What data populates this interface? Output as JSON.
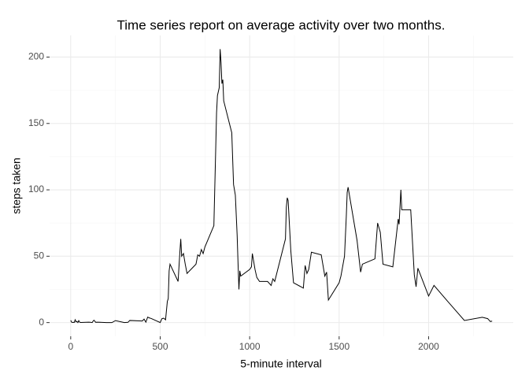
{
  "chart_data": {
    "type": "line",
    "title": "Time series report on average activity over two months.",
    "xlabel": "5-minute interval",
    "ylabel": "steps taken",
    "x": [
      0,
      5,
      10,
      15,
      20,
      25,
      30,
      35,
      40,
      45,
      50,
      55,
      100,
      110,
      120,
      125,
      130,
      140,
      150,
      200,
      230,
      250,
      300,
      320,
      330,
      400,
      410,
      420,
      430,
      440,
      450,
      500,
      510,
      520,
      530,
      540,
      545,
      550,
      555,
      600,
      610,
      615,
      620,
      630,
      640,
      650,
      700,
      710,
      720,
      730,
      740,
      750,
      800,
      810,
      815,
      820,
      830,
      835,
      840,
      845,
      850,
      855,
      900,
      910,
      920,
      930,
      935,
      940,
      945,
      950,
      1000,
      1010,
      1015,
      1030,
      1040,
      1055,
      1100,
      1120,
      1130,
      1140,
      1200,
      1205,
      1210,
      1215,
      1230,
      1245,
      1300,
      1310,
      1320,
      1330,
      1345,
      1400,
      1420,
      1430,
      1440,
      1500,
      1510,
      1530,
      1540,
      1545,
      1550,
      1600,
      1620,
      1630,
      1700,
      1715,
      1730,
      1745,
      1800,
      1830,
      1835,
      1845,
      1850,
      1900,
      1920,
      1930,
      1940,
      2000,
      2030,
      2100,
      2200,
      2300,
      2330,
      2345,
      2355
    ],
    "values": [
      1.7,
      0.3,
      0.1,
      0.2,
      0.1,
      2.1,
      0.5,
      0.9,
      0,
      1.5,
      0.3,
      0.1,
      0.3,
      0.2,
      0,
      1.1,
      1.8,
      0.2,
      0.3,
      0,
      0,
      1.5,
      0,
      0.2,
      1.6,
      1.2,
      2.6,
      0.3,
      4.1,
      3.5,
      3.1,
      0,
      3,
      3.3,
      2.1,
      16,
      18,
      39,
      44,
      31,
      53,
      63,
      50,
      52,
      44,
      37,
      44,
      51,
      50,
      55,
      52,
      57,
      73,
      129,
      158,
      171,
      177,
      206,
      196,
      180,
      183,
      167,
      143,
      104,
      96,
      66,
      45,
      25,
      39,
      35,
      40,
      42,
      52,
      40,
      34,
      31,
      31,
      28,
      33,
      31,
      63,
      87,
      94,
      92,
      54,
      30,
      26,
      43,
      37,
      40,
      53,
      51,
      35,
      38,
      17,
      30,
      35,
      50,
      80,
      98,
      102,
      62,
      38,
      44,
      48,
      75,
      68,
      44,
      42,
      78,
      74,
      100,
      85,
      85,
      36,
      27,
      41,
      20,
      28,
      17,
      1.6,
      4,
      3,
      0.8,
      1.1
    ],
    "color": "#000000",
    "xlim": [
      -118,
      2473
    ],
    "xticks": [
      0,
      500,
      1000,
      1500,
      2000
    ],
    "xminor": [
      250,
      750,
      1250,
      1750,
      2250
    ],
    "ylim": [
      -10.3,
      216.3
    ],
    "yticks": [
      0,
      50,
      100,
      150,
      200
    ],
    "yminor": [
      25,
      75,
      125,
      175
    ],
    "grid": true
  }
}
